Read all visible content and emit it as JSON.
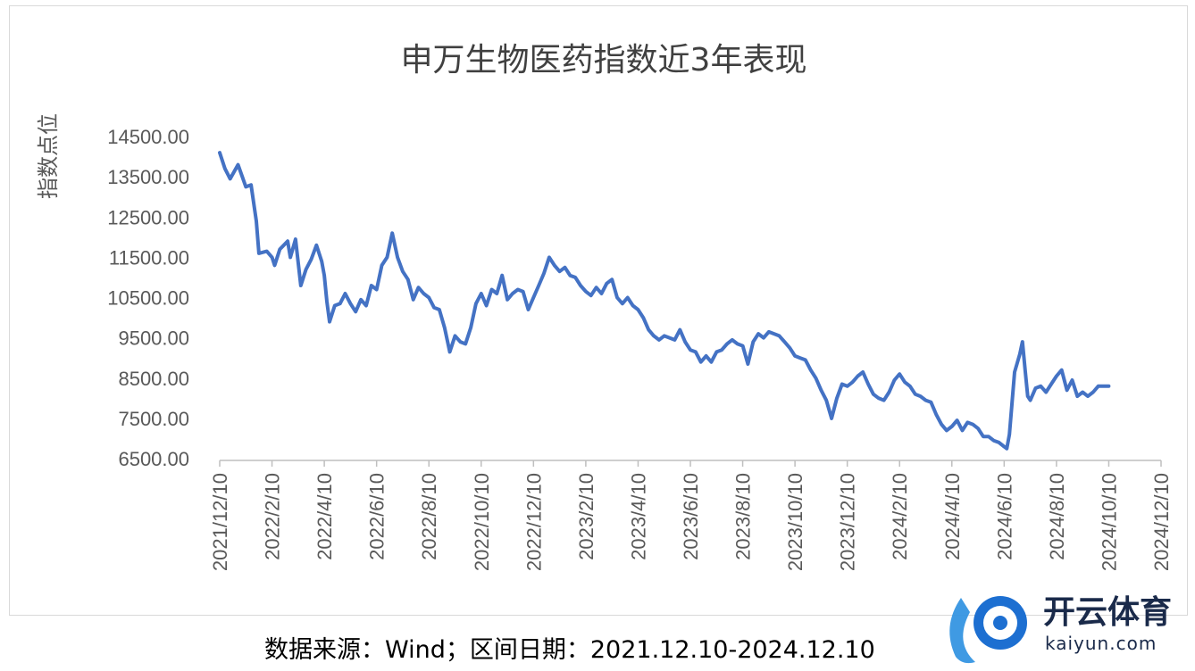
{
  "chart_data": {
    "type": "line",
    "title": "申万生物医药指数近3年表现",
    "ylabel": "指数点位",
    "xlabel": "",
    "ylim": [
      6500,
      14500
    ],
    "yticks": [
      "14500.00",
      "13500.00",
      "12500.00",
      "11500.00",
      "10500.00",
      "9500.00",
      "8500.00",
      "7500.00",
      "6500.00"
    ],
    "ytick_values": [
      14500,
      13500,
      12500,
      11500,
      10500,
      9500,
      8500,
      7500,
      6500
    ],
    "xticks": [
      "2021/12/10",
      "2022/2/10",
      "2022/4/10",
      "2022/6/10",
      "2022/8/10",
      "2022/10/10",
      "2022/12/10",
      "2023/2/10",
      "2023/4/10",
      "2023/6/10",
      "2023/8/10",
      "2023/10/10",
      "2023/12/10",
      "2024/2/10",
      "2024/4/10",
      "2024/6/10",
      "2024/8/10",
      "2024/10/10",
      "2024/12/10"
    ],
    "line_color": "#4472c4",
    "grid": false,
    "series": [
      {
        "values": [
          [
            0,
            14100
          ],
          [
            0.1,
            13700
          ],
          [
            0.2,
            13450
          ],
          [
            0.35,
            13800
          ],
          [
            0.5,
            13250
          ],
          [
            0.6,
            13300
          ],
          [
            0.7,
            12400
          ],
          [
            0.75,
            11600
          ],
          [
            0.9,
            11650
          ],
          [
            1.0,
            11500
          ],
          [
            1.05,
            11300
          ],
          [
            1.15,
            11700
          ],
          [
            1.3,
            11900
          ],
          [
            1.35,
            11500
          ],
          [
            1.45,
            11950
          ],
          [
            1.55,
            10800
          ],
          [
            1.65,
            11200
          ],
          [
            1.75,
            11450
          ],
          [
            1.85,
            11800
          ],
          [
            1.95,
            11400
          ],
          [
            2.0,
            11050
          ],
          [
            2.05,
            10400
          ],
          [
            2.1,
            9900
          ],
          [
            2.2,
            10300
          ],
          [
            2.3,
            10350
          ],
          [
            2.4,
            10600
          ],
          [
            2.5,
            10350
          ],
          [
            2.6,
            10150
          ],
          [
            2.7,
            10450
          ],
          [
            2.8,
            10300
          ],
          [
            2.9,
            10800
          ],
          [
            3.0,
            10700
          ],
          [
            3.1,
            11300
          ],
          [
            3.2,
            11500
          ],
          [
            3.3,
            12100
          ],
          [
            3.4,
            11500
          ],
          [
            3.5,
            11150
          ],
          [
            3.6,
            10950
          ],
          [
            3.7,
            10450
          ],
          [
            3.8,
            10750
          ],
          [
            3.9,
            10600
          ],
          [
            4.0,
            10500
          ],
          [
            4.1,
            10250
          ],
          [
            4.2,
            10200
          ],
          [
            4.3,
            9750
          ],
          [
            4.4,
            9150
          ],
          [
            4.5,
            9550
          ],
          [
            4.6,
            9400
          ],
          [
            4.7,
            9350
          ],
          [
            4.8,
            9750
          ],
          [
            4.9,
            10350
          ],
          [
            5.0,
            10600
          ],
          [
            5.1,
            10300
          ],
          [
            5.2,
            10700
          ],
          [
            5.3,
            10600
          ],
          [
            5.4,
            11050
          ],
          [
            5.5,
            10450
          ],
          [
            5.6,
            10600
          ],
          [
            5.7,
            10700
          ],
          [
            5.8,
            10650
          ],
          [
            5.9,
            10200
          ],
          [
            6.0,
            10500
          ],
          [
            6.1,
            10800
          ],
          [
            6.2,
            11100
          ],
          [
            6.3,
            11500
          ],
          [
            6.4,
            11300
          ],
          [
            6.5,
            11150
          ],
          [
            6.6,
            11250
          ],
          [
            6.7,
            11050
          ],
          [
            6.8,
            11000
          ],
          [
            6.9,
            10800
          ],
          [
            7.0,
            10650
          ],
          [
            7.1,
            10550
          ],
          [
            7.2,
            10750
          ],
          [
            7.3,
            10600
          ],
          [
            7.4,
            10850
          ],
          [
            7.5,
            10950
          ],
          [
            7.6,
            10500
          ],
          [
            7.7,
            10350
          ],
          [
            7.8,
            10500
          ],
          [
            7.9,
            10300
          ],
          [
            8.0,
            10200
          ],
          [
            8.1,
            10000
          ],
          [
            8.2,
            9700
          ],
          [
            8.3,
            9550
          ],
          [
            8.4,
            9450
          ],
          [
            8.5,
            9550
          ],
          [
            8.6,
            9500
          ],
          [
            8.7,
            9450
          ],
          [
            8.8,
            9700
          ],
          [
            8.9,
            9400
          ],
          [
            9.0,
            9200
          ],
          [
            9.1,
            9150
          ],
          [
            9.2,
            8900
          ],
          [
            9.3,
            9050
          ],
          [
            9.4,
            8900
          ],
          [
            9.5,
            9150
          ],
          [
            9.6,
            9200
          ],
          [
            9.7,
            9350
          ],
          [
            9.8,
            9450
          ],
          [
            9.9,
            9350
          ],
          [
            10.0,
            9300
          ],
          [
            10.1,
            8850
          ],
          [
            10.2,
            9400
          ],
          [
            10.3,
            9600
          ],
          [
            10.4,
            9500
          ],
          [
            10.5,
            9650
          ],
          [
            10.6,
            9600
          ],
          [
            10.7,
            9550
          ],
          [
            10.8,
            9400
          ],
          [
            10.9,
            9250
          ],
          [
            11.0,
            9050
          ],
          [
            11.1,
            9000
          ],
          [
            11.2,
            8950
          ],
          [
            11.3,
            8700
          ],
          [
            11.4,
            8500
          ],
          [
            11.5,
            8200
          ],
          [
            11.6,
            7950
          ],
          [
            11.7,
            7500
          ],
          [
            11.8,
            8000
          ],
          [
            11.9,
            8350
          ],
          [
            12.0,
            8300
          ],
          [
            12.1,
            8400
          ],
          [
            12.2,
            8550
          ],
          [
            12.3,
            8650
          ],
          [
            12.4,
            8350
          ],
          [
            12.5,
            8100
          ],
          [
            12.6,
            8000
          ],
          [
            12.7,
            7950
          ],
          [
            12.8,
            8150
          ],
          [
            12.9,
            8450
          ],
          [
            13.0,
            8600
          ],
          [
            13.1,
            8400
          ],
          [
            13.2,
            8300
          ],
          [
            13.3,
            8100
          ],
          [
            13.4,
            8050
          ],
          [
            13.5,
            7950
          ],
          [
            13.6,
            7900
          ],
          [
            13.7,
            7600
          ],
          [
            13.8,
            7350
          ],
          [
            13.9,
            7200
          ],
          [
            14.0,
            7300
          ],
          [
            14.1,
            7450
          ],
          [
            14.2,
            7200
          ],
          [
            14.3,
            7400
          ],
          [
            14.4,
            7350
          ],
          [
            14.5,
            7250
          ],
          [
            14.6,
            7050
          ],
          [
            14.7,
            7050
          ],
          [
            14.8,
            6950
          ],
          [
            14.9,
            6900
          ],
          [
            15.0,
            6800
          ],
          [
            15.05,
            6750
          ],
          [
            15.1,
            7100
          ],
          [
            15.2,
            8650
          ],
          [
            15.3,
            9100
          ],
          [
            15.35,
            9400
          ],
          [
            15.4,
            8700
          ],
          [
            15.45,
            8050
          ],
          [
            15.5,
            7950
          ],
          [
            15.6,
            8250
          ],
          [
            15.7,
            8300
          ],
          [
            15.8,
            8150
          ],
          [
            15.9,
            8350
          ],
          [
            16.0,
            8550
          ],
          [
            16.1,
            8700
          ],
          [
            16.2,
            8200
          ],
          [
            16.3,
            8450
          ],
          [
            16.4,
            8050
          ],
          [
            16.5,
            8150
          ],
          [
            16.6,
            8050
          ],
          [
            16.7,
            8150
          ],
          [
            16.8,
            8300
          ],
          [
            16.9,
            8300
          ],
          [
            17.0,
            8300
          ]
        ]
      }
    ]
  },
  "footer": {
    "source": "数据来源：Wind；区间日期：2021.12.10-2024.12.10"
  },
  "watermark": {
    "brand_cn": "开云体育",
    "brand_en": "kaiyun.com"
  }
}
